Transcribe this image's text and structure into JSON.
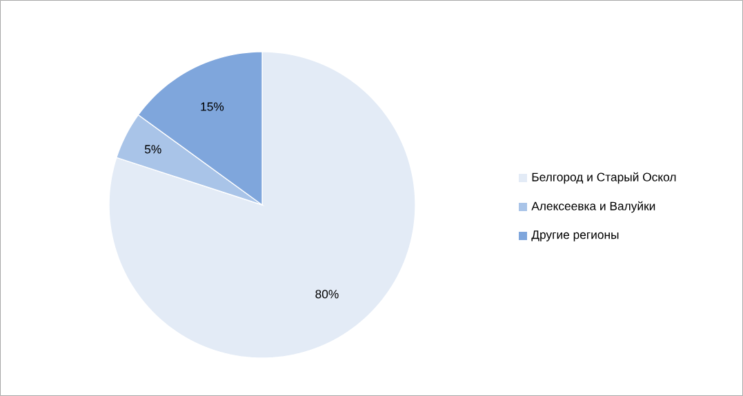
{
  "chart_data": {
    "type": "pie",
    "categories": [
      "Белгород и Старый Оскол",
      "Алексеевка и Валуйки",
      "Другие регионы"
    ],
    "values": [
      80,
      5,
      15
    ],
    "value_labels": [
      "80%",
      "5%",
      "15%"
    ],
    "colors": [
      "#e3ebf6",
      "#a9c4e8",
      "#7fa6dc"
    ],
    "legend": "right"
  }
}
